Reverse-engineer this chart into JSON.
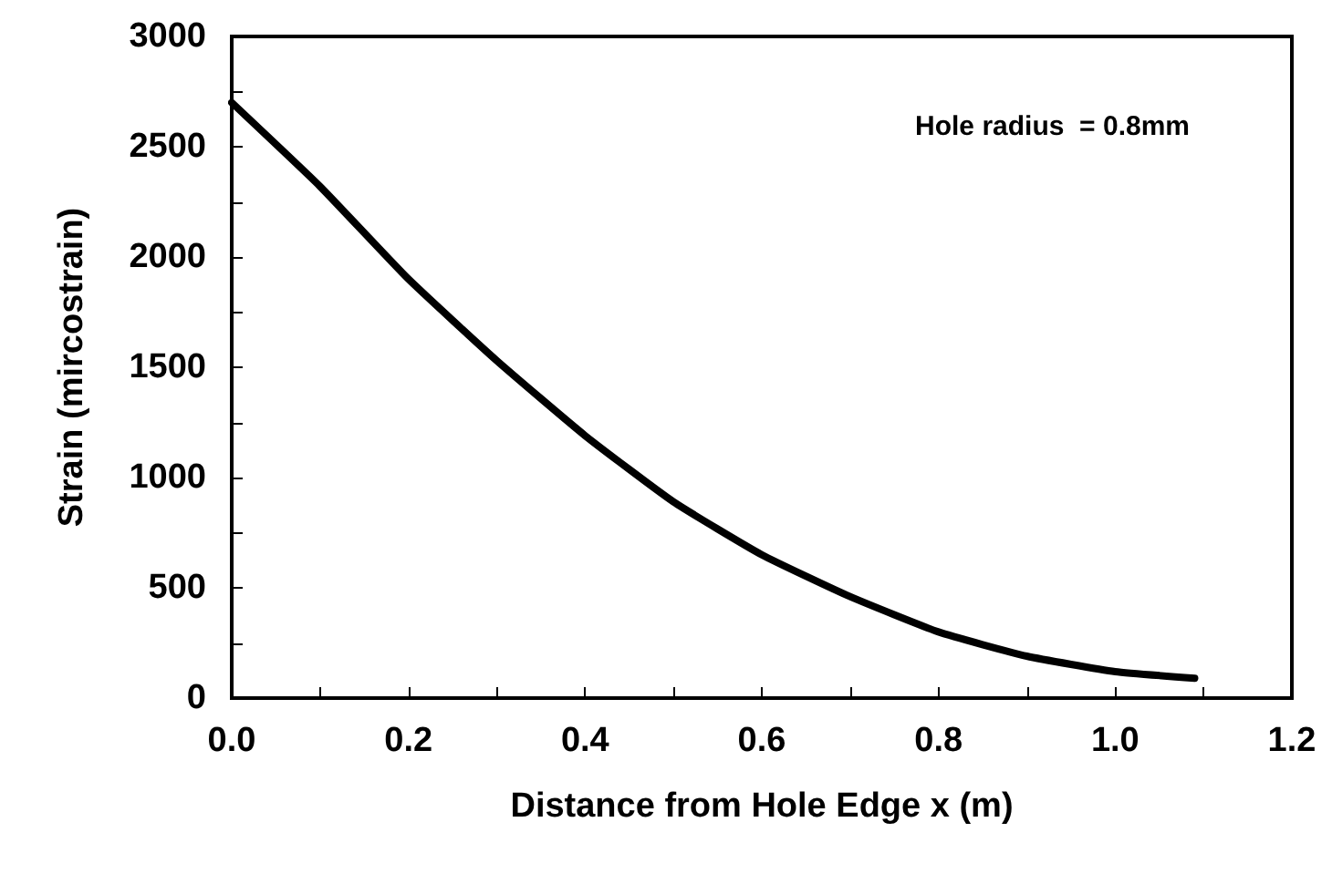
{
  "chart_data": {
    "type": "line",
    "xlabel": "Distance from Hole Edge x (m)",
    "ylabel": "Strain (mircostrain)",
    "annotations": [
      "Hole radius  = 0.8mm"
    ],
    "x": [
      0,
      0.1,
      0.2,
      0.3,
      0.4,
      0.5,
      0.6,
      0.7,
      0.8,
      0.9,
      1.0,
      1.09
    ],
    "series": [
      {
        "color": "#000000",
        "values": [
          2700,
          2320,
          1900,
          1530,
          1190,
          890,
          650,
          460,
          300,
          190,
          120,
          90
        ]
      }
    ],
    "xlim": [
      0,
      1.2
    ],
    "xticks": [
      {
        "value": 0,
        "label": "0.0"
      },
      0.2,
      0.4,
      0.6,
      0.8,
      {
        "value": 1,
        "label": "1.0"
      },
      1.2
    ],
    "ylim": [
      0,
      3000
    ],
    "yticks": [
      0,
      500,
      1000,
      1500,
      2000,
      2500,
      3000
    ],
    "grid": false,
    "marker": "none",
    "line_style": "solid"
  }
}
